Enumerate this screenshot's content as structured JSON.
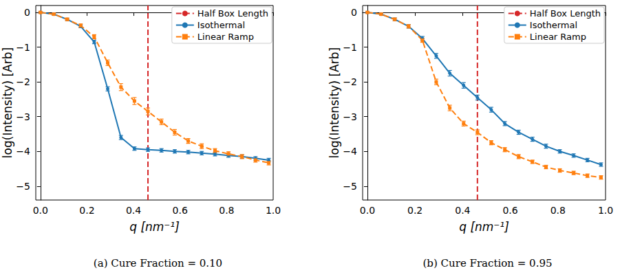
{
  "chart_data": [
    {
      "type": "line",
      "title": "(a) Cure Fraction = 0.10",
      "x_label": "q [nm⁻¹]",
      "y_label": "log(Intensity) [Arb]",
      "x": [
        0,
        0.058,
        0.115,
        0.173,
        0.231,
        0.289,
        0.346,
        0.404,
        0.462,
        0.52,
        0.577,
        0.635,
        0.693,
        0.75,
        0.808,
        0.866,
        0.924,
        0.981
      ],
      "series": [
        {
          "name": "Isothermal",
          "color": "#1f77b4",
          "marker": "circle",
          "line_style": "solid",
          "values": [
            0,
            -0.05,
            -0.2,
            -0.4,
            -0.85,
            -2.2,
            -3.6,
            -3.92,
            -3.95,
            -3.97,
            -4.0,
            -4.02,
            -4.05,
            -4.08,
            -4.12,
            -4.15,
            -4.2,
            -4.25
          ],
          "errors": [
            0.02,
            0.03,
            0.03,
            0.04,
            0.05,
            0.06,
            0.06,
            0.05,
            0.05,
            0.05,
            0.05,
            0.05,
            0.05,
            0.05,
            0.05,
            0.05,
            0.05,
            0.05
          ]
        },
        {
          "name": "Linear Ramp",
          "color": "#ff7f0e",
          "marker": "square",
          "line_style": "dashed",
          "values": [
            0,
            -0.05,
            -0.2,
            -0.38,
            -0.7,
            -1.45,
            -2.15,
            -2.55,
            -2.85,
            -3.15,
            -3.45,
            -3.7,
            -3.85,
            -3.98,
            -4.07,
            -4.15,
            -4.25,
            -4.33
          ],
          "errors": [
            0.02,
            0.03,
            0.04,
            0.05,
            0.06,
            0.08,
            0.1,
            0.1,
            0.1,
            0.08,
            0.08,
            0.07,
            0.07,
            0.06,
            0.06,
            0.06,
            0.06,
            0.06
          ]
        }
      ],
      "reference_line": {
        "name": "Half Box Length",
        "x": 0.462,
        "color": "#d62728",
        "line_style": "dashed"
      },
      "xlim": [
        -0.02,
        1.0
      ],
      "ylim": [
        -5.4,
        0.2
      ],
      "xticks": [
        {
          "value": 0,
          "label": "0.0"
        },
        {
          "value": 0.2,
          "label": "0.2"
        },
        {
          "value": 0.4,
          "label": "0.4"
        },
        {
          "value": 0.6,
          "label": "0.6"
        },
        {
          "value": 0.8,
          "label": "0.8"
        },
        {
          "value": 1.0,
          "label": "1.0"
        }
      ],
      "yticks": [
        {
          "value": -5,
          "label": "−5"
        },
        {
          "value": -4,
          "label": "−4"
        },
        {
          "value": -3,
          "label": "−3"
        },
        {
          "value": -2,
          "label": "−2"
        },
        {
          "value": -1,
          "label": "−1"
        },
        0
      ],
      "legend": "upper right",
      "grid": false
    },
    {
      "type": "line",
      "title": "(b) Cure Fraction = 0.95",
      "x_label": "q [nm⁻¹]",
      "y_label": "log(Intensity) [Arb]",
      "x": [
        0,
        0.058,
        0.115,
        0.173,
        0.231,
        0.289,
        0.346,
        0.404,
        0.462,
        0.52,
        0.577,
        0.635,
        0.693,
        0.75,
        0.808,
        0.866,
        0.924,
        0.981
      ],
      "series": [
        {
          "name": "Isothermal",
          "color": "#1f77b4",
          "marker": "circle",
          "line_style": "solid",
          "values": [
            0,
            -0.05,
            -0.2,
            -0.4,
            -0.75,
            -1.25,
            -1.75,
            -2.1,
            -2.45,
            -2.8,
            -3.2,
            -3.45,
            -3.65,
            -3.85,
            -4.0,
            -4.12,
            -4.25,
            -4.38
          ],
          "errors": [
            0.02,
            0.03,
            0.04,
            0.05,
            0.06,
            0.07,
            0.08,
            0.08,
            0.07,
            0.07,
            0.06,
            0.06,
            0.06,
            0.06,
            0.05,
            0.05,
            0.05,
            0.05
          ]
        },
        {
          "name": "Linear Ramp",
          "color": "#ff7f0e",
          "marker": "square",
          "line_style": "dashed",
          "values": [
            0,
            -0.05,
            -0.2,
            -0.4,
            -0.8,
            -2.0,
            -2.75,
            -3.2,
            -3.45,
            -3.75,
            -3.95,
            -4.15,
            -4.3,
            -4.45,
            -4.55,
            -4.62,
            -4.7,
            -4.75
          ],
          "errors": [
            0.02,
            0.03,
            0.04,
            0.05,
            0.06,
            0.08,
            0.08,
            0.07,
            0.07,
            0.06,
            0.06,
            0.06,
            0.05,
            0.05,
            0.05,
            0.05,
            0.05,
            0.05
          ]
        }
      ],
      "reference_line": {
        "name": "Half Box Length",
        "x": 0.462,
        "color": "#d62728",
        "line_style": "dashed"
      },
      "xlim": [
        -0.02,
        1.0
      ],
      "ylim": [
        -5.4,
        0.2
      ],
      "xticks": [
        {
          "value": 0,
          "label": "0.0"
        },
        {
          "value": 0.2,
          "label": "0.2"
        },
        {
          "value": 0.4,
          "label": "0.4"
        },
        {
          "value": 0.6,
          "label": "0.6"
        },
        {
          "value": 0.8,
          "label": "0.8"
        },
        {
          "value": 1.0,
          "label": "1.0"
        }
      ],
      "yticks": [
        {
          "value": -5,
          "label": "−5"
        },
        {
          "value": -4,
          "label": "−4"
        },
        {
          "value": -3,
          "label": "−3"
        },
        {
          "value": -2,
          "label": "−2"
        },
        {
          "value": -1,
          "label": "−1"
        },
        0
      ],
      "legend": "upper right",
      "grid": false
    }
  ]
}
